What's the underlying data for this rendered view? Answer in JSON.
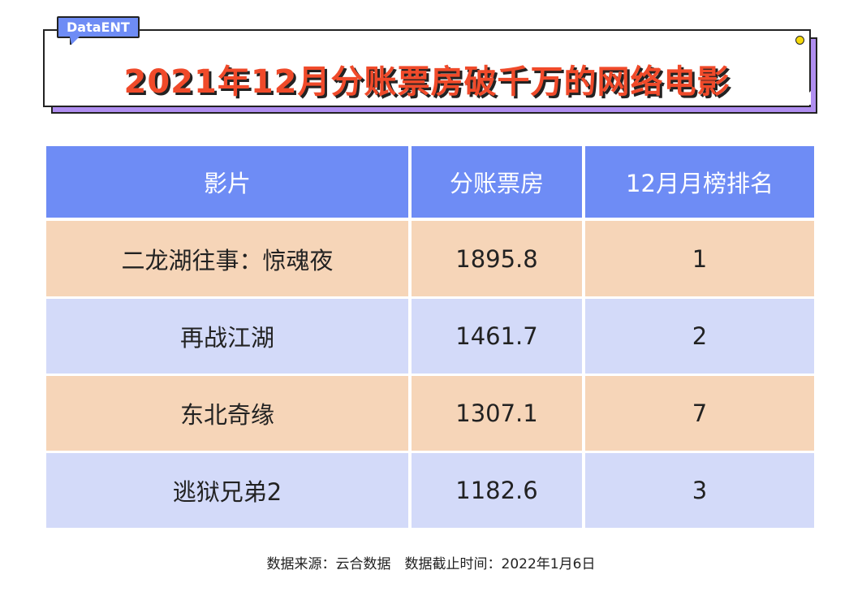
{
  "brand": "DataENT",
  "title": "2021年12月分账票房破千万的网络电影",
  "table": {
    "headers": [
      "影片",
      "分账票房",
      "12月月榜排名"
    ],
    "rows": [
      [
        "二龙湖往事：惊魂夜",
        "1895.8",
        "1"
      ],
      [
        "再战江湖",
        "1461.7",
        "2"
      ],
      [
        "东北奇缘",
        "1307.1",
        "7"
      ],
      [
        "逃狱兄弟2",
        "1182.6",
        "3"
      ]
    ]
  },
  "footer": "数据来源：云合数据　数据截止时间：2022年1月6日",
  "colors": {
    "header": "#6e8cf5",
    "row_odd": "#f6d5b8",
    "row_even": "#d3daf9",
    "title": "#f04a2a"
  }
}
